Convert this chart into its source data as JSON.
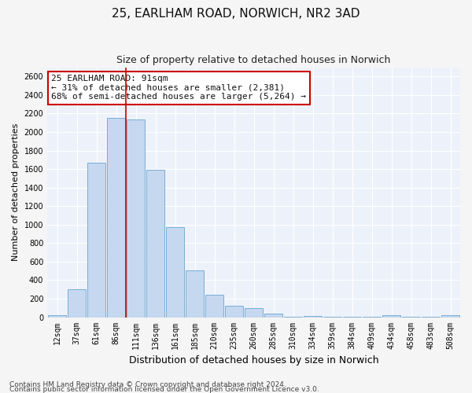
{
  "title": "25, EARLHAM ROAD, NORWICH, NR2 3AD",
  "subtitle": "Size of property relative to detached houses in Norwich",
  "xlabel": "Distribution of detached houses by size in Norwich",
  "ylabel": "Number of detached properties",
  "footer_line1": "Contains HM Land Registry data © Crown copyright and database right 2024.",
  "footer_line2": "Contains public sector information licensed under the Open Government Licence v3.0.",
  "categories": [
    "12sqm",
    "37sqm",
    "61sqm",
    "86sqm",
    "111sqm",
    "136sqm",
    "161sqm",
    "185sqm",
    "210sqm",
    "235sqm",
    "260sqm",
    "285sqm",
    "310sqm",
    "334sqm",
    "359sqm",
    "384sqm",
    "409sqm",
    "434sqm",
    "458sqm",
    "483sqm",
    "508sqm"
  ],
  "values": [
    20,
    300,
    1670,
    2150,
    2140,
    1590,
    970,
    505,
    245,
    120,
    95,
    40,
    5,
    15,
    5,
    5,
    5,
    20,
    5,
    5,
    20
  ],
  "bar_color": "#c5d8f0",
  "bar_edge_color": "#7aadd4",
  "property_line_x": 3.5,
  "annotation_text_line1": "25 EARLHAM ROAD: 91sqm",
  "annotation_text_line2": "← 31% of detached houses are smaller (2,381)",
  "annotation_text_line3": "68% of semi-detached houses are larger (5,264) →",
  "annotation_box_color": "#ffffff",
  "annotation_border_color": "#cc0000",
  "ylim_max": 2700,
  "ytick_step": 200,
  "plot_bg_color": "#edf2fa",
  "fig_bg_color": "#f5f5f5",
  "grid_color": "#ffffff",
  "title_fontsize": 11,
  "subtitle_fontsize": 9,
  "xlabel_fontsize": 9,
  "ylabel_fontsize": 8,
  "tick_fontsize": 7,
  "annotation_fontsize": 8,
  "footer_fontsize": 6.5
}
